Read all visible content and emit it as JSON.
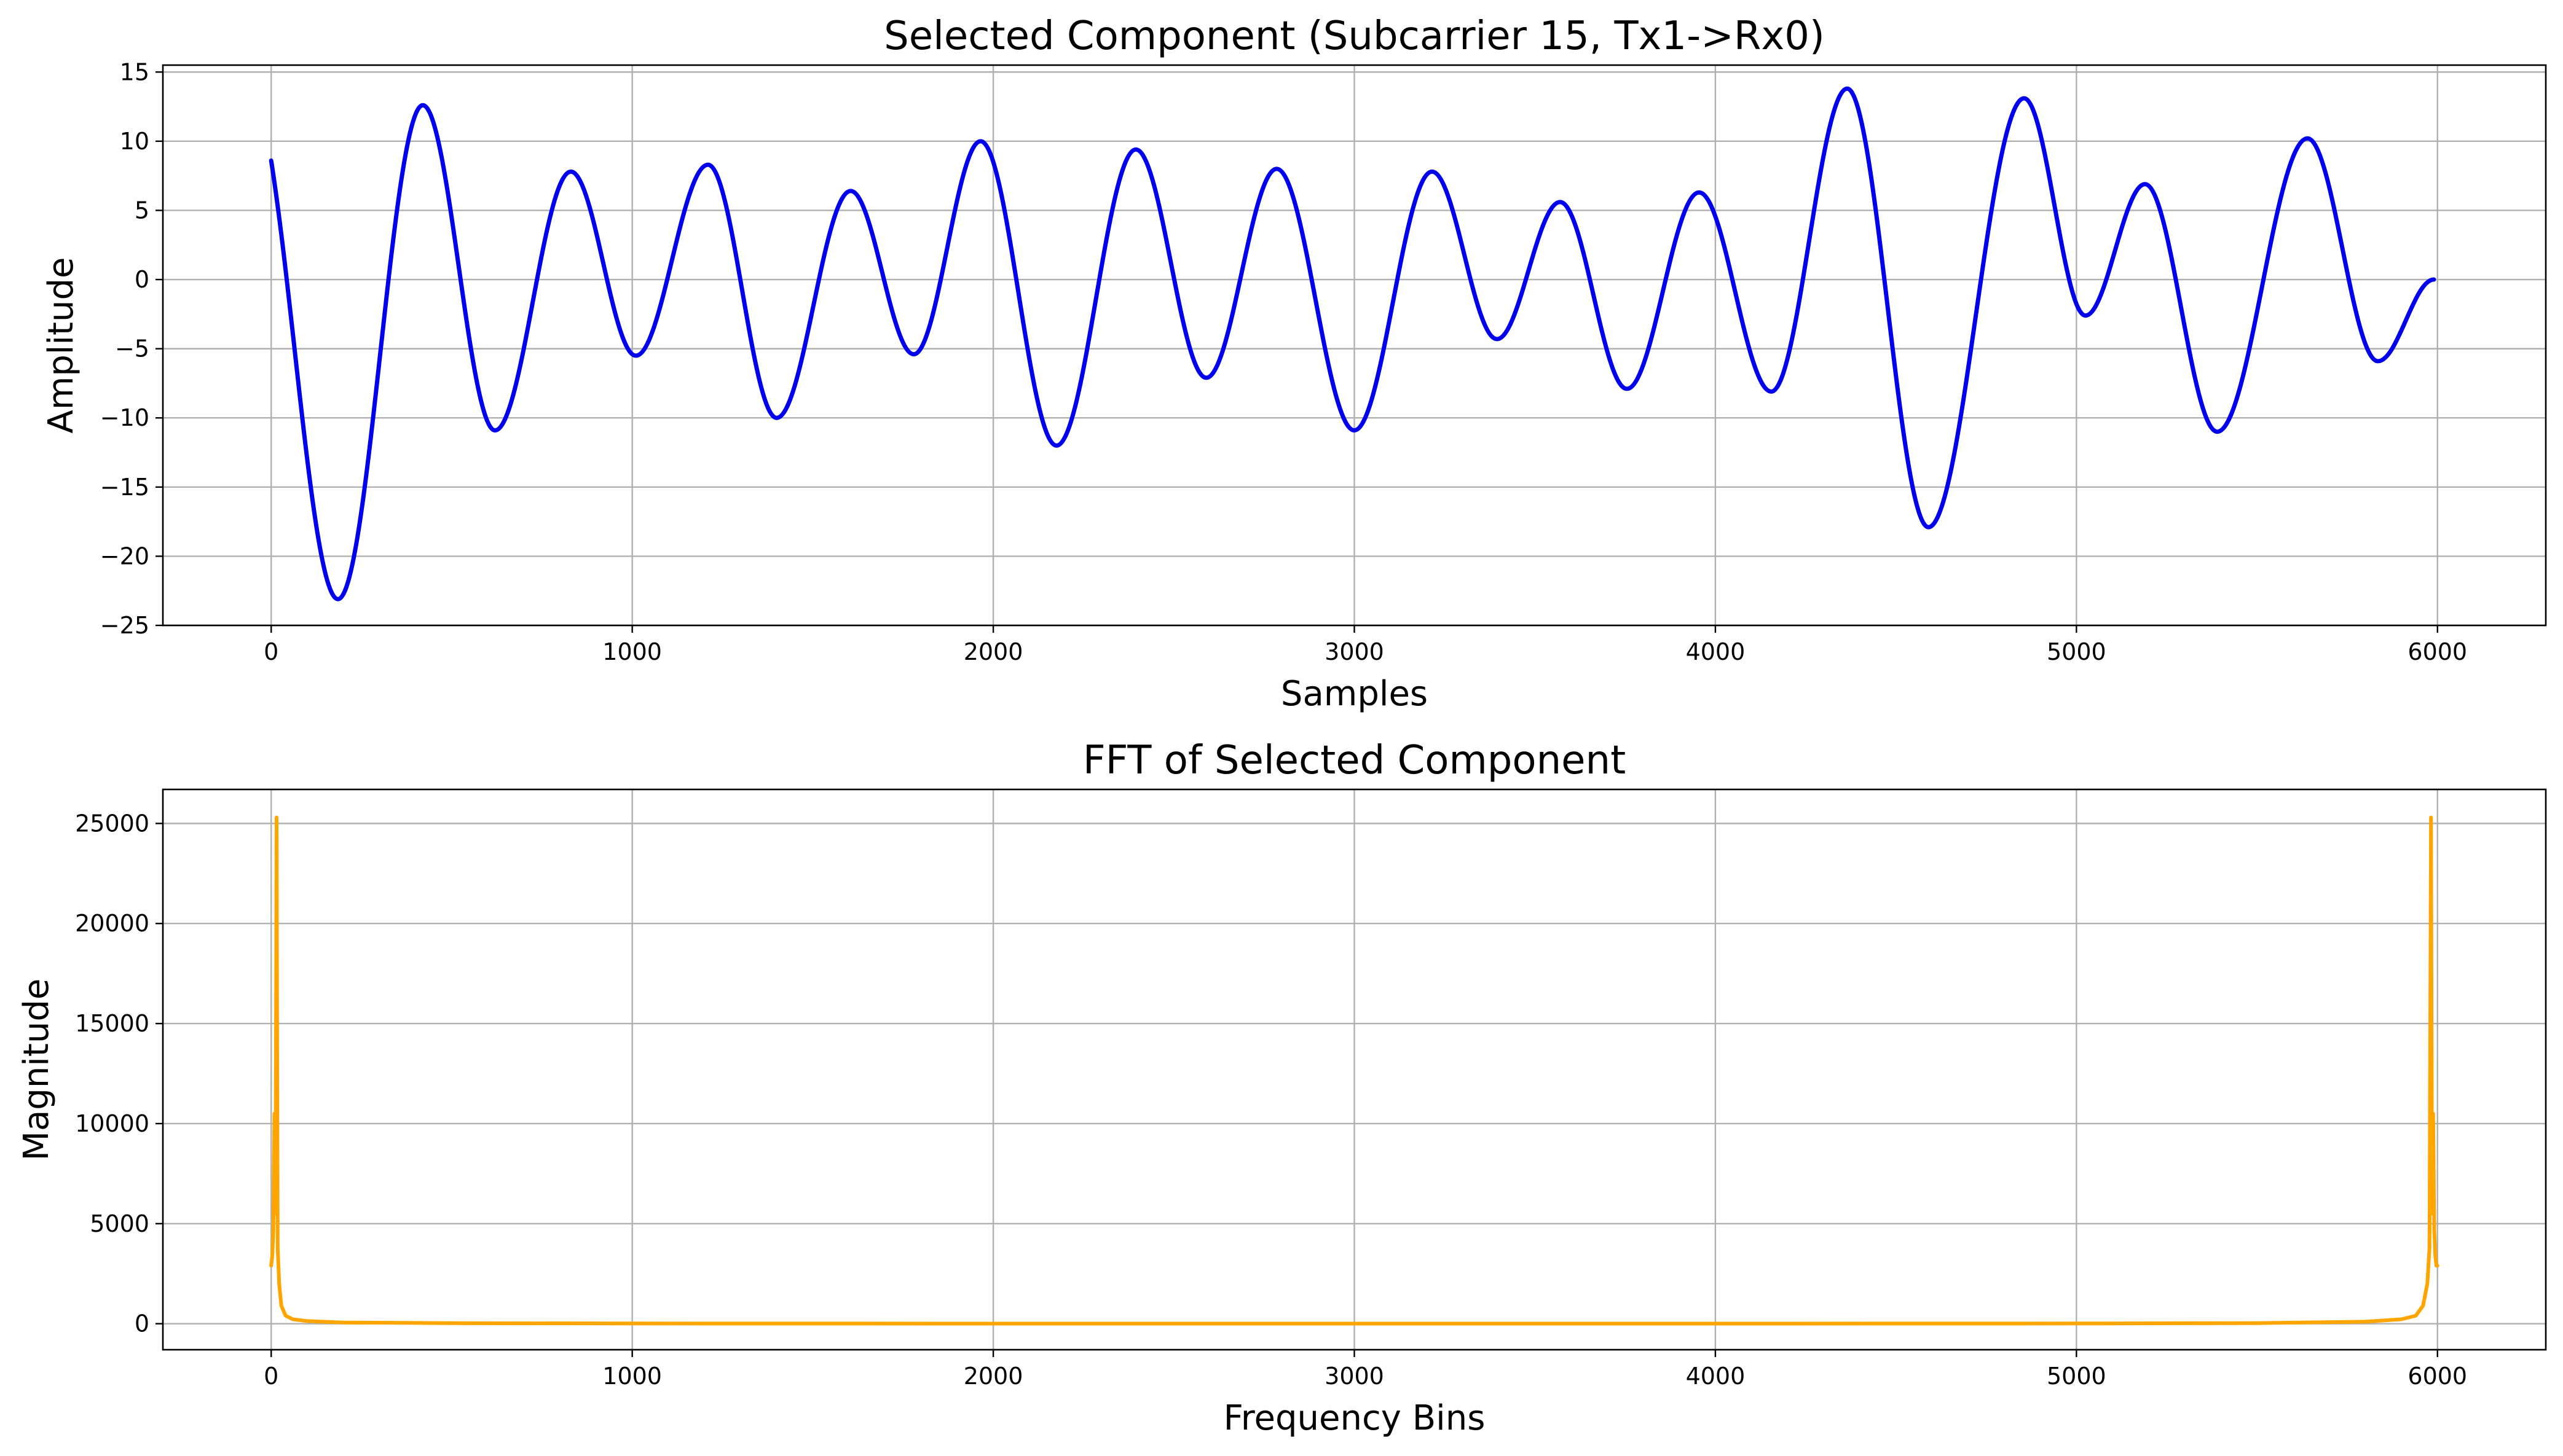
{
  "chart_data": [
    {
      "type": "line",
      "title": "Selected Component (Subcarrier 15, Tx1->Rx0)",
      "xlabel": "Samples",
      "ylabel": "Amplitude",
      "xlim": [
        -300,
        6300
      ],
      "ylim": [
        -25,
        15.5
      ],
      "xticks": [
        0,
        1000,
        2000,
        3000,
        4000,
        5000,
        6000
      ],
      "yticks": [
        -25,
        -20,
        -15,
        -10,
        -5,
        0,
        5,
        10,
        15
      ],
      "xtick_labels": [
        "0",
        "1000",
        "2000",
        "3000",
        "4000",
        "5000",
        "6000"
      ],
      "ytick_labels": [
        "−25",
        "−20",
        "−15",
        "−10",
        "−5",
        "0",
        "5",
        "10",
        "15"
      ],
      "grid": true,
      "legend": "none",
      "color": "#0000ee",
      "series": [
        {
          "x": [
            0,
            185,
            420,
            620,
            830,
            1010,
            1210,
            1400,
            1605,
            1780,
            1965,
            2175,
            2395,
            2590,
            2785,
            3000,
            3215,
            3395,
            3570,
            3755,
            3955,
            4155,
            4365,
            4590,
            4855,
            5025,
            5190,
            5390,
            5640,
            5835,
            5990
          ],
          "values": [
            8.6,
            -23.1,
            12.6,
            -10.9,
            7.8,
            -5.5,
            8.3,
            -10.0,
            6.4,
            -5.4,
            10.0,
            -12.0,
            9.4,
            -7.1,
            8.0,
            -10.9,
            7.8,
            -4.3,
            5.6,
            -7.9,
            6.3,
            -8.1,
            13.8,
            -17.9,
            13.1,
            -2.6,
            6.9,
            -11.0,
            10.2,
            -5.9,
            0.0
          ]
        }
      ]
    },
    {
      "type": "line",
      "title": "FFT of Selected Component",
      "xlabel": "Frequency Bins",
      "ylabel": "Magnitude",
      "xlim": [
        -300,
        6300
      ],
      "ylim": [
        -1300,
        26700
      ],
      "xticks": [
        0,
        1000,
        2000,
        3000,
        4000,
        5000,
        6000
      ],
      "yticks": [
        0,
        5000,
        10000,
        15000,
        20000,
        25000
      ],
      "xtick_labels": [
        "0",
        "1000",
        "2000",
        "3000",
        "4000",
        "5000",
        "6000"
      ],
      "ytick_labels": [
        "0",
        "5000",
        "10000",
        "15000",
        "20000",
        "25000"
      ],
      "grid": true,
      "legend": "none",
      "color": "#ffa500",
      "series": [
        {
          "x": [
            0,
            3,
            6,
            9,
            12,
            15,
            18,
            22,
            28,
            40,
            60,
            100,
            200,
            500,
            1000,
            2000,
            3000,
            4000,
            5000,
            5500,
            5800,
            5900,
            5940,
            5960,
            5972,
            5978,
            5982,
            5985,
            5988,
            5991,
            5994,
            5997,
            6000
          ],
          "values": [
            2900,
            3400,
            4700,
            10500,
            5500,
            25300,
            3800,
            2000,
            900,
            400,
            220,
            130,
            60,
            25,
            12,
            6,
            5,
            6,
            12,
            30,
            100,
            220,
            400,
            900,
            2000,
            3800,
            25300,
            5500,
            10500,
            4700,
            3400,
            2900,
            2900
          ]
        }
      ]
    }
  ]
}
